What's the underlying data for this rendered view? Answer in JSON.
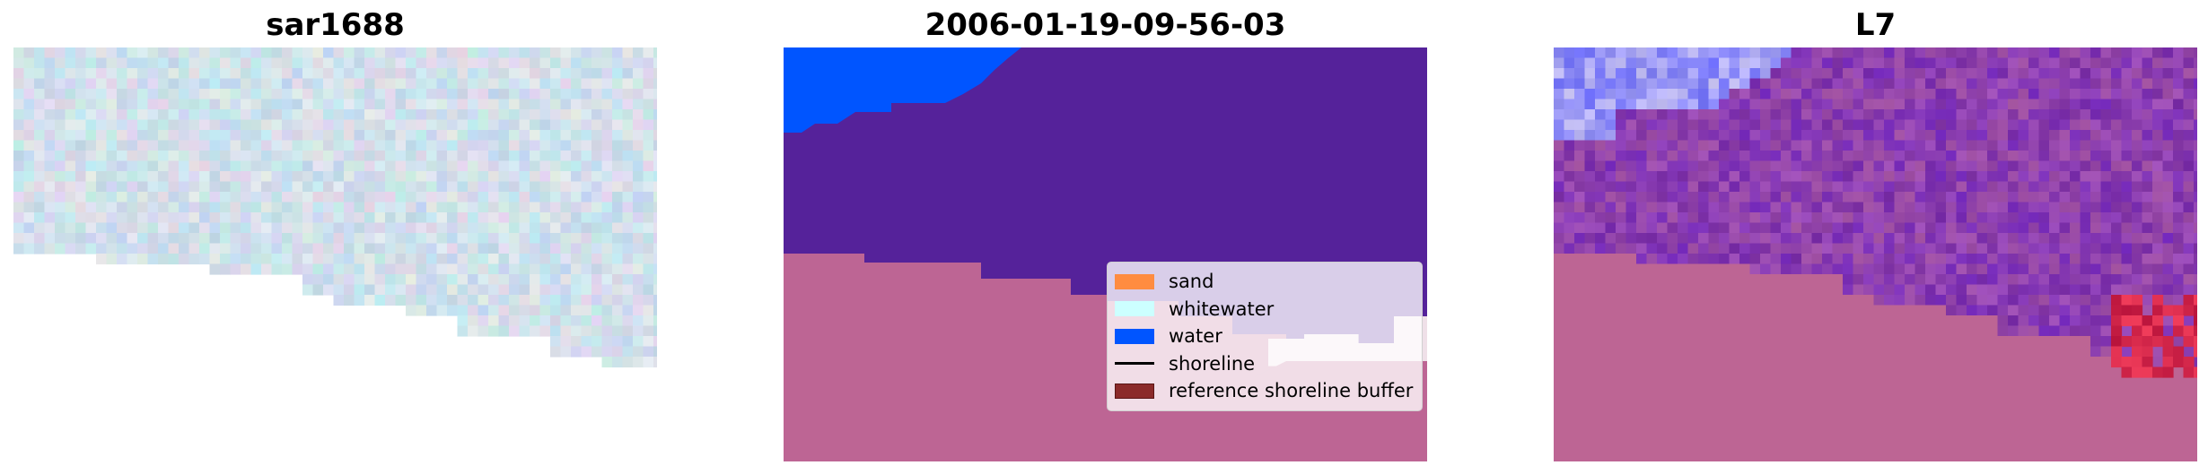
{
  "panels": [
    {
      "title": "sar1688"
    },
    {
      "title": "2006-01-19-09-56-03"
    },
    {
      "title": "L7"
    }
  ],
  "legend": {
    "items": [
      {
        "label": "sand",
        "color": "#ff8c40",
        "kind": "patch"
      },
      {
        "label": "whitewater",
        "color": "#ccffff",
        "kind": "patch"
      },
      {
        "label": "water",
        "color": "#0055ff",
        "kind": "patch"
      },
      {
        "label": "shoreline",
        "color": "#000000",
        "kind": "line"
      },
      {
        "label": "reference shoreline buffer",
        "color": "#8b2a2a",
        "kind": "patch"
      }
    ]
  },
  "colors": {
    "classified_purple": "#55229a",
    "pink_overlay": "#bd6594",
    "water_blue": "#0055ff",
    "whitewater_pink": "#efe0e8"
  }
}
